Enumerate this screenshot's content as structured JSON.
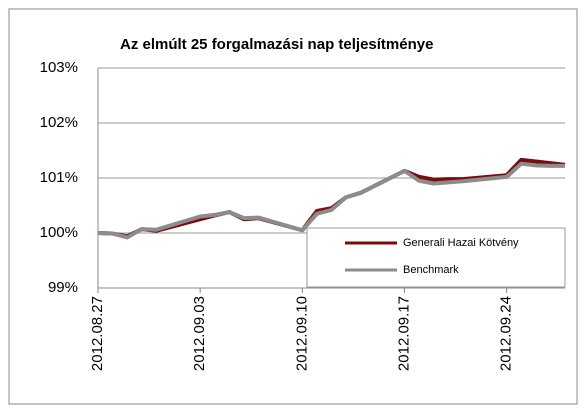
{
  "chart_data": {
    "type": "line",
    "title": "Az elmúlt 25 forgalmazási nap teljesítménye",
    "x": [
      "2012.08.27",
      "2012.08.28",
      "2012.08.29",
      "2012.08.30",
      "2012.08.31",
      "2012.09.03",
      "2012.09.04",
      "2012.09.05",
      "2012.09.06",
      "2012.09.07",
      "2012.09.10",
      "2012.09.11",
      "2012.09.12",
      "2012.09.13",
      "2012.09.14",
      "2012.09.17",
      "2012.09.18",
      "2012.09.19",
      "2012.09.20",
      "2012.09.21",
      "2012.09.24",
      "2012.09.25",
      "2012.09.26",
      "2012.09.27",
      "2012.09.28"
    ],
    "series": [
      {
        "name": "Generali Hazai Kötvény",
        "color": "#7b0c0c",
        "values": [
          100.0,
          99.99,
          99.94,
          100.07,
          100.04,
          100.25,
          100.32,
          100.38,
          100.25,
          100.27,
          100.05,
          100.4,
          100.45,
          100.65,
          100.73,
          101.13,
          101.02,
          100.97,
          100.98,
          100.98,
          101.05,
          101.33,
          101.3,
          101.27,
          101.24
        ]
      },
      {
        "name": "Benchmark",
        "color": "#8c8c8c",
        "values": [
          100.0,
          99.99,
          99.92,
          100.07,
          100.06,
          100.3,
          100.33,
          100.38,
          100.27,
          100.28,
          100.05,
          100.35,
          100.42,
          100.65,
          100.73,
          101.13,
          100.95,
          100.9,
          100.92,
          100.94,
          101.02,
          101.26,
          101.23,
          101.22,
          101.22
        ]
      }
    ],
    "xlim": [
      "2012.08.27",
      "2012.09.28"
    ],
    "xticks": [
      "2012.08.27",
      "2012.09.03",
      "2012.09.10",
      "2012.09.17",
      "2012.09.24"
    ],
    "ylim": [
      99,
      103
    ],
    "yticks": [
      {
        "value": 99,
        "label": "99%"
      },
      {
        "value": 100,
        "label": "100%"
      },
      {
        "value": 101,
        "label": "101%"
      },
      {
        "value": 102,
        "label": "102%"
      },
      {
        "value": 103,
        "label": "103%"
      }
    ],
    "grid": true,
    "legend": "lower right"
  }
}
